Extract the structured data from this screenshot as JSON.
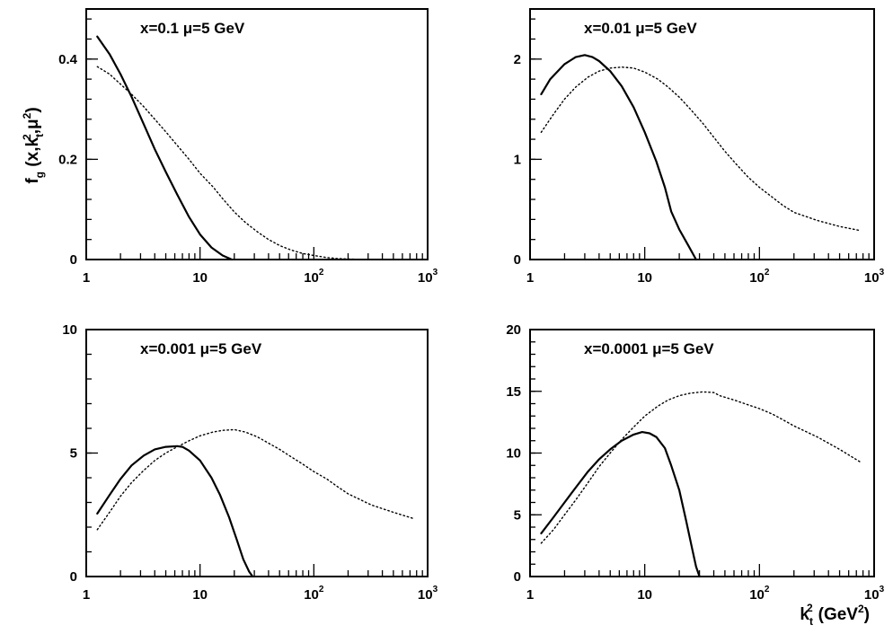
{
  "figure": {
    "ylabel": {
      "main": "f",
      "sub": "g",
      "open": "(x,k",
      "k_sub": "t",
      "k_sup": "2",
      "mid": ",μ",
      "mu_sup": "2",
      "close": ")"
    },
    "xlabel": {
      "main": "k",
      "sub": "t",
      "sup": "2",
      "unit_open": "(GeV",
      "unit_sup": "2",
      "unit_close": ")"
    }
  },
  "chart_data": [
    {
      "type": "line",
      "title": "x=0.1   μ=5 GeV",
      "x_scale": "log",
      "xlim": [
        1,
        1000
      ],
      "ylim": [
        0,
        0.5
      ],
      "x_ticks": [
        {
          "base": "1"
        },
        {
          "base": "10"
        },
        {
          "base": "10",
          "exp": "2"
        },
        {
          "base": "10",
          "exp": "3"
        }
      ],
      "y_ticks": [
        {
          "value": 0,
          "label": "0"
        },
        {
          "value": 0.2,
          "label": "0.2"
        },
        {
          "value": 0.4,
          "label": "0.4"
        }
      ],
      "series": [
        {
          "style": "solid",
          "points": [
            [
              1.25,
              0.445
            ],
            [
              1.6,
              0.41
            ],
            [
              2,
              0.37
            ],
            [
              2.5,
              0.325
            ],
            [
              3.2,
              0.27
            ],
            [
              4,
              0.22
            ],
            [
              5,
              0.175
            ],
            [
              6.3,
              0.13
            ],
            [
              8,
              0.085
            ],
            [
              10,
              0.05
            ],
            [
              12.6,
              0.024
            ],
            [
              15.8,
              0.008
            ],
            [
              19,
              0.0
            ]
          ]
        },
        {
          "style": "dotted",
          "points": [
            [
              1.25,
              0.385
            ],
            [
              1.6,
              0.37
            ],
            [
              2,
              0.35
            ],
            [
              2.5,
              0.33
            ],
            [
              3.2,
              0.305
            ],
            [
              4,
              0.28
            ],
            [
              5,
              0.255
            ],
            [
              6.3,
              0.228
            ],
            [
              8,
              0.2
            ],
            [
              10,
              0.172
            ],
            [
              13,
              0.145
            ],
            [
              16,
              0.12
            ],
            [
              20,
              0.095
            ],
            [
              25,
              0.074
            ],
            [
              32,
              0.055
            ],
            [
              40,
              0.04
            ],
            [
              50,
              0.028
            ],
            [
              63,
              0.019
            ],
            [
              80,
              0.012
            ],
            [
              100,
              0.008
            ],
            [
              130,
              0.004
            ],
            [
              160,
              0.002
            ],
            [
              200,
              0.001
            ],
            [
              300,
              0.0
            ],
            [
              800,
              0.0
            ]
          ]
        }
      ]
    },
    {
      "type": "line",
      "title": "x=0.01   μ=5 GeV",
      "x_scale": "log",
      "xlim": [
        1,
        1000
      ],
      "ylim": [
        0,
        2.5
      ],
      "x_ticks": [
        {
          "base": "1"
        },
        {
          "base": "10"
        },
        {
          "base": "10",
          "exp": "2"
        },
        {
          "base": "10",
          "exp": "3"
        }
      ],
      "y_ticks": [
        {
          "value": 0,
          "label": "0"
        },
        {
          "value": 1,
          "label": "1"
        },
        {
          "value": 2,
          "label": "2"
        }
      ],
      "series": [
        {
          "style": "solid",
          "points": [
            [
              1.25,
              1.65
            ],
            [
              1.5,
              1.8
            ],
            [
              2,
              1.95
            ],
            [
              2.5,
              2.02
            ],
            [
              3,
              2.04
            ],
            [
              3.5,
              2.02
            ],
            [
              4,
              1.98
            ],
            [
              5,
              1.88
            ],
            [
              6.3,
              1.73
            ],
            [
              8,
              1.52
            ],
            [
              10,
              1.27
            ],
            [
              12.6,
              0.98
            ],
            [
              15,
              0.72
            ],
            [
              17,
              0.48
            ],
            [
              20,
              0.3
            ],
            [
              24,
              0.14
            ],
            [
              28,
              0.0
            ]
          ]
        },
        {
          "style": "dotted",
          "points": [
            [
              1.25,
              1.27
            ],
            [
              1.6,
              1.45
            ],
            [
              2,
              1.6
            ],
            [
              2.5,
              1.72
            ],
            [
              3.2,
              1.82
            ],
            [
              4,
              1.88
            ],
            [
              5,
              1.91
            ],
            [
              6.3,
              1.92
            ],
            [
              8,
              1.91
            ],
            [
              10,
              1.87
            ],
            [
              13,
              1.8
            ],
            [
              16,
              1.72
            ],
            [
              20,
              1.62
            ],
            [
              25,
              1.5
            ],
            [
              32,
              1.36
            ],
            [
              40,
              1.22
            ],
            [
              50,
              1.08
            ],
            [
              63,
              0.95
            ],
            [
              80,
              0.82
            ],
            [
              100,
              0.72
            ],
            [
              130,
              0.62
            ],
            [
              160,
              0.54
            ],
            [
              200,
              0.47
            ],
            [
              320,
              0.39
            ],
            [
              500,
              0.33
            ],
            [
              750,
              0.29
            ]
          ]
        }
      ]
    },
    {
      "type": "line",
      "title": "x=0.001   μ=5 GeV",
      "x_scale": "log",
      "xlim": [
        1,
        1000
      ],
      "ylim": [
        0,
        10
      ],
      "x_ticks": [
        {
          "base": "1"
        },
        {
          "base": "10"
        },
        {
          "base": "10",
          "exp": "2"
        },
        {
          "base": "10",
          "exp": "3"
        }
      ],
      "y_ticks": [
        {
          "value": 0,
          "label": "0"
        },
        {
          "value": 5,
          "label": "5"
        },
        {
          "value": 10,
          "label": "10"
        }
      ],
      "series": [
        {
          "style": "solid",
          "points": [
            [
              1.25,
              2.55
            ],
            [
              1.6,
              3.3
            ],
            [
              2,
              3.95
            ],
            [
              2.5,
              4.5
            ],
            [
              3.2,
              4.9
            ],
            [
              4,
              5.15
            ],
            [
              5,
              5.25
            ],
            [
              6.3,
              5.28
            ],
            [
              7,
              5.25
            ],
            [
              8,
              5.1
            ],
            [
              10,
              4.7
            ],
            [
              12.6,
              4.0
            ],
            [
              15,
              3.3
            ],
            [
              18,
              2.4
            ],
            [
              21,
              1.5
            ],
            [
              24,
              0.7
            ],
            [
              27,
              0.2
            ],
            [
              29,
              0.0
            ]
          ]
        },
        {
          "style": "dotted",
          "points": [
            [
              1.25,
              1.9
            ],
            [
              1.6,
              2.6
            ],
            [
              2,
              3.25
            ],
            [
              2.5,
              3.8
            ],
            [
              3.2,
              4.3
            ],
            [
              4,
              4.7
            ],
            [
              5,
              5.0
            ],
            [
              6.3,
              5.25
            ],
            [
              8,
              5.5
            ],
            [
              10,
              5.7
            ],
            [
              13,
              5.85
            ],
            [
              16,
              5.92
            ],
            [
              20,
              5.95
            ],
            [
              25,
              5.85
            ],
            [
              32,
              5.65
            ],
            [
              40,
              5.4
            ],
            [
              50,
              5.15
            ],
            [
              63,
              4.85
            ],
            [
              80,
              4.55
            ],
            [
              100,
              4.25
            ],
            [
              130,
              3.95
            ],
            [
              160,
              3.65
            ],
            [
              200,
              3.35
            ],
            [
              320,
              2.9
            ],
            [
              500,
              2.6
            ],
            [
              750,
              2.35
            ]
          ]
        }
      ]
    },
    {
      "type": "line",
      "title": "x=0.0001   μ=5 GeV",
      "x_scale": "log",
      "xlim": [
        1,
        1000
      ],
      "ylim": [
        0,
        20
      ],
      "x_ticks": [
        {
          "base": "1"
        },
        {
          "base": "10"
        },
        {
          "base": "10",
          "exp": "2"
        },
        {
          "base": "10",
          "exp": "3"
        }
      ],
      "y_ticks": [
        {
          "value": 0,
          "label": "0"
        },
        {
          "value": 5,
          "label": "5"
        },
        {
          "value": 10,
          "label": "10"
        },
        {
          "value": 15,
          "label": "15"
        },
        {
          "value": 20,
          "label": "20"
        }
      ],
      "series": [
        {
          "style": "solid",
          "points": [
            [
              1.25,
              3.5
            ],
            [
              1.6,
              4.8
            ],
            [
              2,
              6.0
            ],
            [
              2.5,
              7.2
            ],
            [
              3.2,
              8.5
            ],
            [
              4,
              9.5
            ],
            [
              5,
              10.3
            ],
            [
              6.3,
              11.0
            ],
            [
              8,
              11.5
            ],
            [
              9.5,
              11.7
            ],
            [
              11,
              11.6
            ],
            [
              12.6,
              11.3
            ],
            [
              15,
              10.4
            ],
            [
              17,
              9.0
            ],
            [
              20,
              7.0
            ],
            [
              23,
              4.5
            ],
            [
              26,
              2.2
            ],
            [
              28,
              0.8
            ],
            [
              30,
              0.0
            ]
          ]
        },
        {
          "style": "dotted",
          "points": [
            [
              1.25,
              2.7
            ],
            [
              1.6,
              3.8
            ],
            [
              2,
              5.0
            ],
            [
              2.5,
              6.2
            ],
            [
              3.2,
              7.6
            ],
            [
              4,
              8.9
            ],
            [
              5,
              10.0
            ],
            [
              6.3,
              11.1
            ],
            [
              8,
              12.1
            ],
            [
              10,
              13.0
            ],
            [
              13,
              13.8
            ],
            [
              16,
              14.3
            ],
            [
              20,
              14.65
            ],
            [
              25,
              14.85
            ],
            [
              32,
              14.95
            ],
            [
              40,
              14.9
            ],
            [
              45,
              14.65
            ],
            [
              60,
              14.3
            ],
            [
              80,
              13.9
            ],
            [
              100,
              13.6
            ],
            [
              130,
              13.15
            ],
            [
              160,
              12.7
            ],
            [
              200,
              12.2
            ],
            [
              320,
              11.3
            ],
            [
              500,
              10.3
            ],
            [
              750,
              9.3
            ]
          ]
        }
      ]
    }
  ]
}
